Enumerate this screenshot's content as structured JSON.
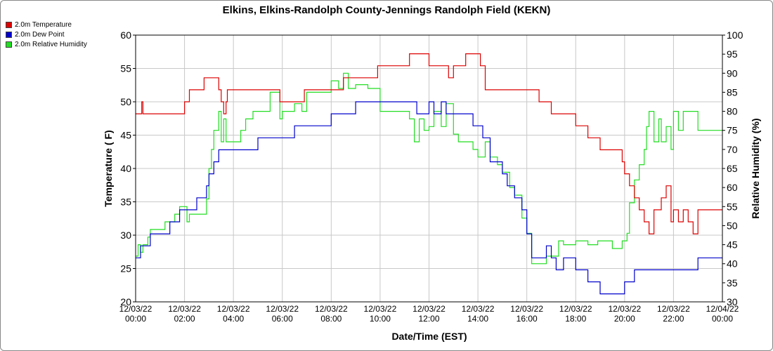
{
  "chart_data": {
    "type": "line",
    "title": "Elkins, Elkins-Randolph County-Jennings Randolph Field (KEKN)",
    "xlabel": "Date/Time (EST)",
    "ylabel": "Temperature ( F)",
    "y2label": "Relative Humidity (%)",
    "xlim": [
      0,
      24
    ],
    "ylim": [
      20,
      60
    ],
    "y2lim": [
      30,
      100
    ],
    "x_ticks": [
      {
        "x": 0,
        "date": "12/03/22",
        "time": "00:00"
      },
      {
        "x": 2,
        "date": "12/03/22",
        "time": "02:00"
      },
      {
        "x": 4,
        "date": "12/03/22",
        "time": "04:00"
      },
      {
        "x": 6,
        "date": "12/03/22",
        "time": "06:00"
      },
      {
        "x": 8,
        "date": "12/03/22",
        "time": "08:00"
      },
      {
        "x": 10,
        "date": "12/03/22",
        "time": "10:00"
      },
      {
        "x": 12,
        "date": "12/03/22",
        "time": "12:00"
      },
      {
        "x": 14,
        "date": "12/03/22",
        "time": "14:00"
      },
      {
        "x": 16,
        "date": "12/03/22",
        "time": "16:00"
      },
      {
        "x": 18,
        "date": "12/03/22",
        "time": "18:00"
      },
      {
        "x": 20,
        "date": "12/03/22",
        "time": "20:00"
      },
      {
        "x": 22,
        "date": "12/03/22",
        "time": "22:00"
      },
      {
        "x": 24,
        "date": "12/04/22",
        "time": "00:00"
      }
    ],
    "y_ticks": [
      "20",
      "25",
      "30",
      "35",
      "40",
      "45",
      "50",
      "55",
      "60"
    ],
    "y2_ticks": [
      "30",
      "35",
      "40",
      "45",
      "50",
      "55",
      "60",
      "65",
      "70",
      "75",
      "80",
      "85",
      "90",
      "95",
      "100"
    ],
    "grid": true,
    "legend_position": "top-left",
    "series": [
      {
        "name": "2.0m Temperature",
        "axis": "left",
        "color": "#dd0000",
        "x": [
          0,
          0.2,
          0.25,
          0.3,
          0.5,
          1.0,
          1.5,
          1.9,
          2.0,
          2.1,
          2.2,
          2.3,
          2.5,
          2.6,
          2.8,
          2.9,
          3.0,
          3.2,
          3.4,
          3.5,
          3.6,
          3.65,
          3.7,
          3.75,
          3.8,
          4.0,
          4.5,
          5.0,
          5.5,
          5.9,
          6.0,
          6.5,
          6.9,
          7.0,
          7.5,
          7.8,
          8.0,
          8.5,
          9.0,
          9.5,
          9.9,
          10.0,
          10.5,
          10.9,
          11.0,
          11.2,
          11.5,
          12.0,
          12.3,
          12.5,
          12.7,
          12.8,
          13.0,
          13.5,
          14.0,
          14.1,
          14.3,
          14.5,
          14.7,
          15.0,
          15.5,
          16.0,
          16.5,
          16.9,
          17.0,
          17.5,
          18.0,
          18.2,
          18.5,
          18.9,
          19.0,
          19.5,
          19.9,
          20.0,
          20.1,
          20.2,
          20.4,
          20.6,
          20.8,
          21.0,
          21.2,
          21.4,
          21.5,
          21.7,
          21.9,
          22.0,
          22.2,
          22.4,
          22.6,
          22.8,
          23.0,
          23.5,
          24.0
        ],
        "values": [
          48.2,
          48.2,
          50.0,
          48.2,
          48.2,
          48.2,
          48.2,
          48.2,
          50.0,
          50.0,
          51.8,
          51.8,
          51.8,
          51.8,
          53.6,
          53.6,
          53.6,
          53.6,
          51.8,
          50.0,
          48.2,
          48.2,
          50.0,
          51.8,
          51.8,
          51.8,
          51.8,
          51.8,
          51.8,
          50.0,
          50.0,
          50.0,
          51.8,
          51.8,
          51.8,
          51.8,
          51.8,
          53.6,
          53.6,
          53.6,
          55.4,
          55.4,
          55.4,
          55.4,
          55.4,
          57.2,
          57.2,
          55.4,
          55.4,
          55.4,
          55.4,
          53.6,
          55.4,
          57.2,
          57.2,
          55.4,
          51.8,
          51.8,
          51.8,
          51.8,
          51.8,
          51.8,
          50.0,
          50.0,
          48.2,
          48.2,
          46.4,
          46.4,
          44.6,
          44.6,
          42.8,
          42.8,
          41.0,
          39.2,
          39.2,
          37.4,
          35.6,
          33.8,
          32.0,
          30.2,
          33.8,
          33.8,
          35.6,
          37.4,
          32.0,
          33.8,
          32.0,
          33.8,
          32.0,
          30.2,
          33.8,
          33.8,
          33.8
        ]
      },
      {
        "name": "2.0m Dew Point",
        "axis": "left",
        "color": "#0000cc",
        "x": [
          0,
          0.1,
          0.2,
          0.3,
          0.5,
          0.6,
          0.8,
          1.0,
          1.2,
          1.4,
          1.5,
          1.8,
          2.0,
          2.3,
          2.5,
          2.7,
          2.9,
          3.0,
          3.2,
          3.4,
          3.5,
          3.6,
          4.0,
          4.5,
          5.0,
          5.5,
          5.9,
          6.0,
          6.5,
          7.0,
          7.5,
          8.0,
          8.5,
          9.0,
          9.5,
          10.0,
          10.5,
          11.0,
          11.5,
          12.0,
          12.2,
          12.5,
          12.7,
          13.0,
          13.5,
          13.8,
          14.0,
          14.2,
          14.5,
          14.8,
          15.0,
          15.2,
          15.5,
          15.8,
          16.0,
          16.2,
          16.5,
          16.8,
          17.0,
          17.2,
          17.5,
          18.0,
          18.3,
          18.5,
          18.9,
          19.0,
          19.5,
          19.9,
          20.0,
          20.2,
          20.4,
          20.6,
          21.0,
          21.5,
          22.0,
          22.5,
          22.9,
          23.0,
          23.5,
          24.0
        ],
        "values": [
          26.6,
          26.6,
          28.4,
          28.4,
          28.4,
          30.2,
          30.2,
          30.2,
          30.2,
          32.0,
          32.0,
          33.8,
          33.8,
          33.8,
          35.6,
          35.6,
          37.4,
          39.2,
          41.0,
          42.8,
          42.8,
          42.8,
          42.8,
          42.8,
          44.6,
          44.6,
          44.6,
          44.6,
          46.4,
          46.4,
          46.4,
          48.2,
          48.2,
          50.0,
          50.0,
          50.0,
          50.0,
          50.0,
          48.2,
          50.0,
          48.2,
          50.0,
          48.2,
          48.2,
          48.2,
          46.4,
          46.4,
          44.6,
          41.0,
          41.0,
          39.2,
          37.4,
          35.6,
          33.8,
          30.2,
          26.6,
          26.6,
          28.4,
          26.6,
          24.8,
          26.6,
          24.8,
          24.8,
          23.0,
          23.0,
          21.2,
          21.2,
          21.2,
          23.0,
          23.0,
          24.8,
          24.8,
          24.8,
          24.8,
          24.8,
          24.8,
          24.8,
          26.6,
          26.6,
          26.6
        ]
      },
      {
        "name": "2.0m Relative Humidity",
        "axis": "right",
        "color": "#22dd22",
        "x": [
          0,
          0.1,
          0.2,
          0.3,
          0.5,
          0.6,
          0.8,
          1.0,
          1.2,
          1.4,
          1.6,
          1.8,
          2.0,
          2.1,
          2.2,
          2.5,
          2.7,
          2.9,
          3.0,
          3.1,
          3.2,
          3.4,
          3.5,
          3.6,
          3.7,
          3.8,
          4.0,
          4.3,
          4.5,
          4.8,
          5.0,
          5.2,
          5.5,
          5.9,
          6.0,
          6.3,
          6.5,
          6.8,
          7.0,
          7.5,
          8.0,
          8.3,
          8.5,
          8.7,
          9.0,
          9.5,
          10.0,
          10.5,
          11.0,
          11.2,
          11.4,
          11.6,
          11.8,
          12.0,
          12.2,
          12.5,
          12.7,
          13.0,
          13.2,
          13.5,
          13.8,
          14.0,
          14.3,
          14.5,
          14.8,
          15.0,
          15.3,
          15.5,
          15.8,
          16.0,
          16.2,
          16.5,
          16.8,
          17.0,
          17.3,
          17.5,
          18.0,
          18.3,
          18.5,
          18.9,
          19.0,
          19.5,
          19.9,
          20.0,
          20.1,
          20.2,
          20.4,
          20.6,
          20.8,
          20.9,
          21.0,
          21.2,
          21.4,
          21.5,
          21.7,
          21.9,
          22.0,
          22.2,
          22.4,
          22.6,
          22.8,
          23.0,
          23.5,
          23.9,
          24.0
        ],
        "values": [
          42,
          45,
          43,
          45,
          47,
          49,
          49,
          49,
          51,
          51,
          53,
          55,
          55,
          51,
          53,
          53,
          53,
          57,
          65,
          70,
          75,
          80,
          72,
          78,
          72,
          72,
          72,
          75,
          78,
          80,
          80,
          80,
          85,
          78,
          80,
          80,
          82,
          80,
          85,
          85,
          88,
          86,
          90,
          86,
          87,
          86,
          80,
          80,
          80,
          78,
          72,
          78,
          75,
          76,
          80,
          76,
          82,
          74,
          72,
          72,
          70,
          68,
          72,
          68,
          66,
          64,
          60,
          58,
          52,
          48,
          40,
          40,
          42,
          42,
          46,
          45,
          46,
          46,
          45,
          46,
          46,
          44,
          46,
          46,
          48,
          56,
          62,
          66,
          70,
          76,
          80,
          72,
          78,
          72,
          76,
          70,
          80,
          75,
          80,
          80,
          80,
          75,
          75,
          75,
          75
        ]
      }
    ]
  }
}
